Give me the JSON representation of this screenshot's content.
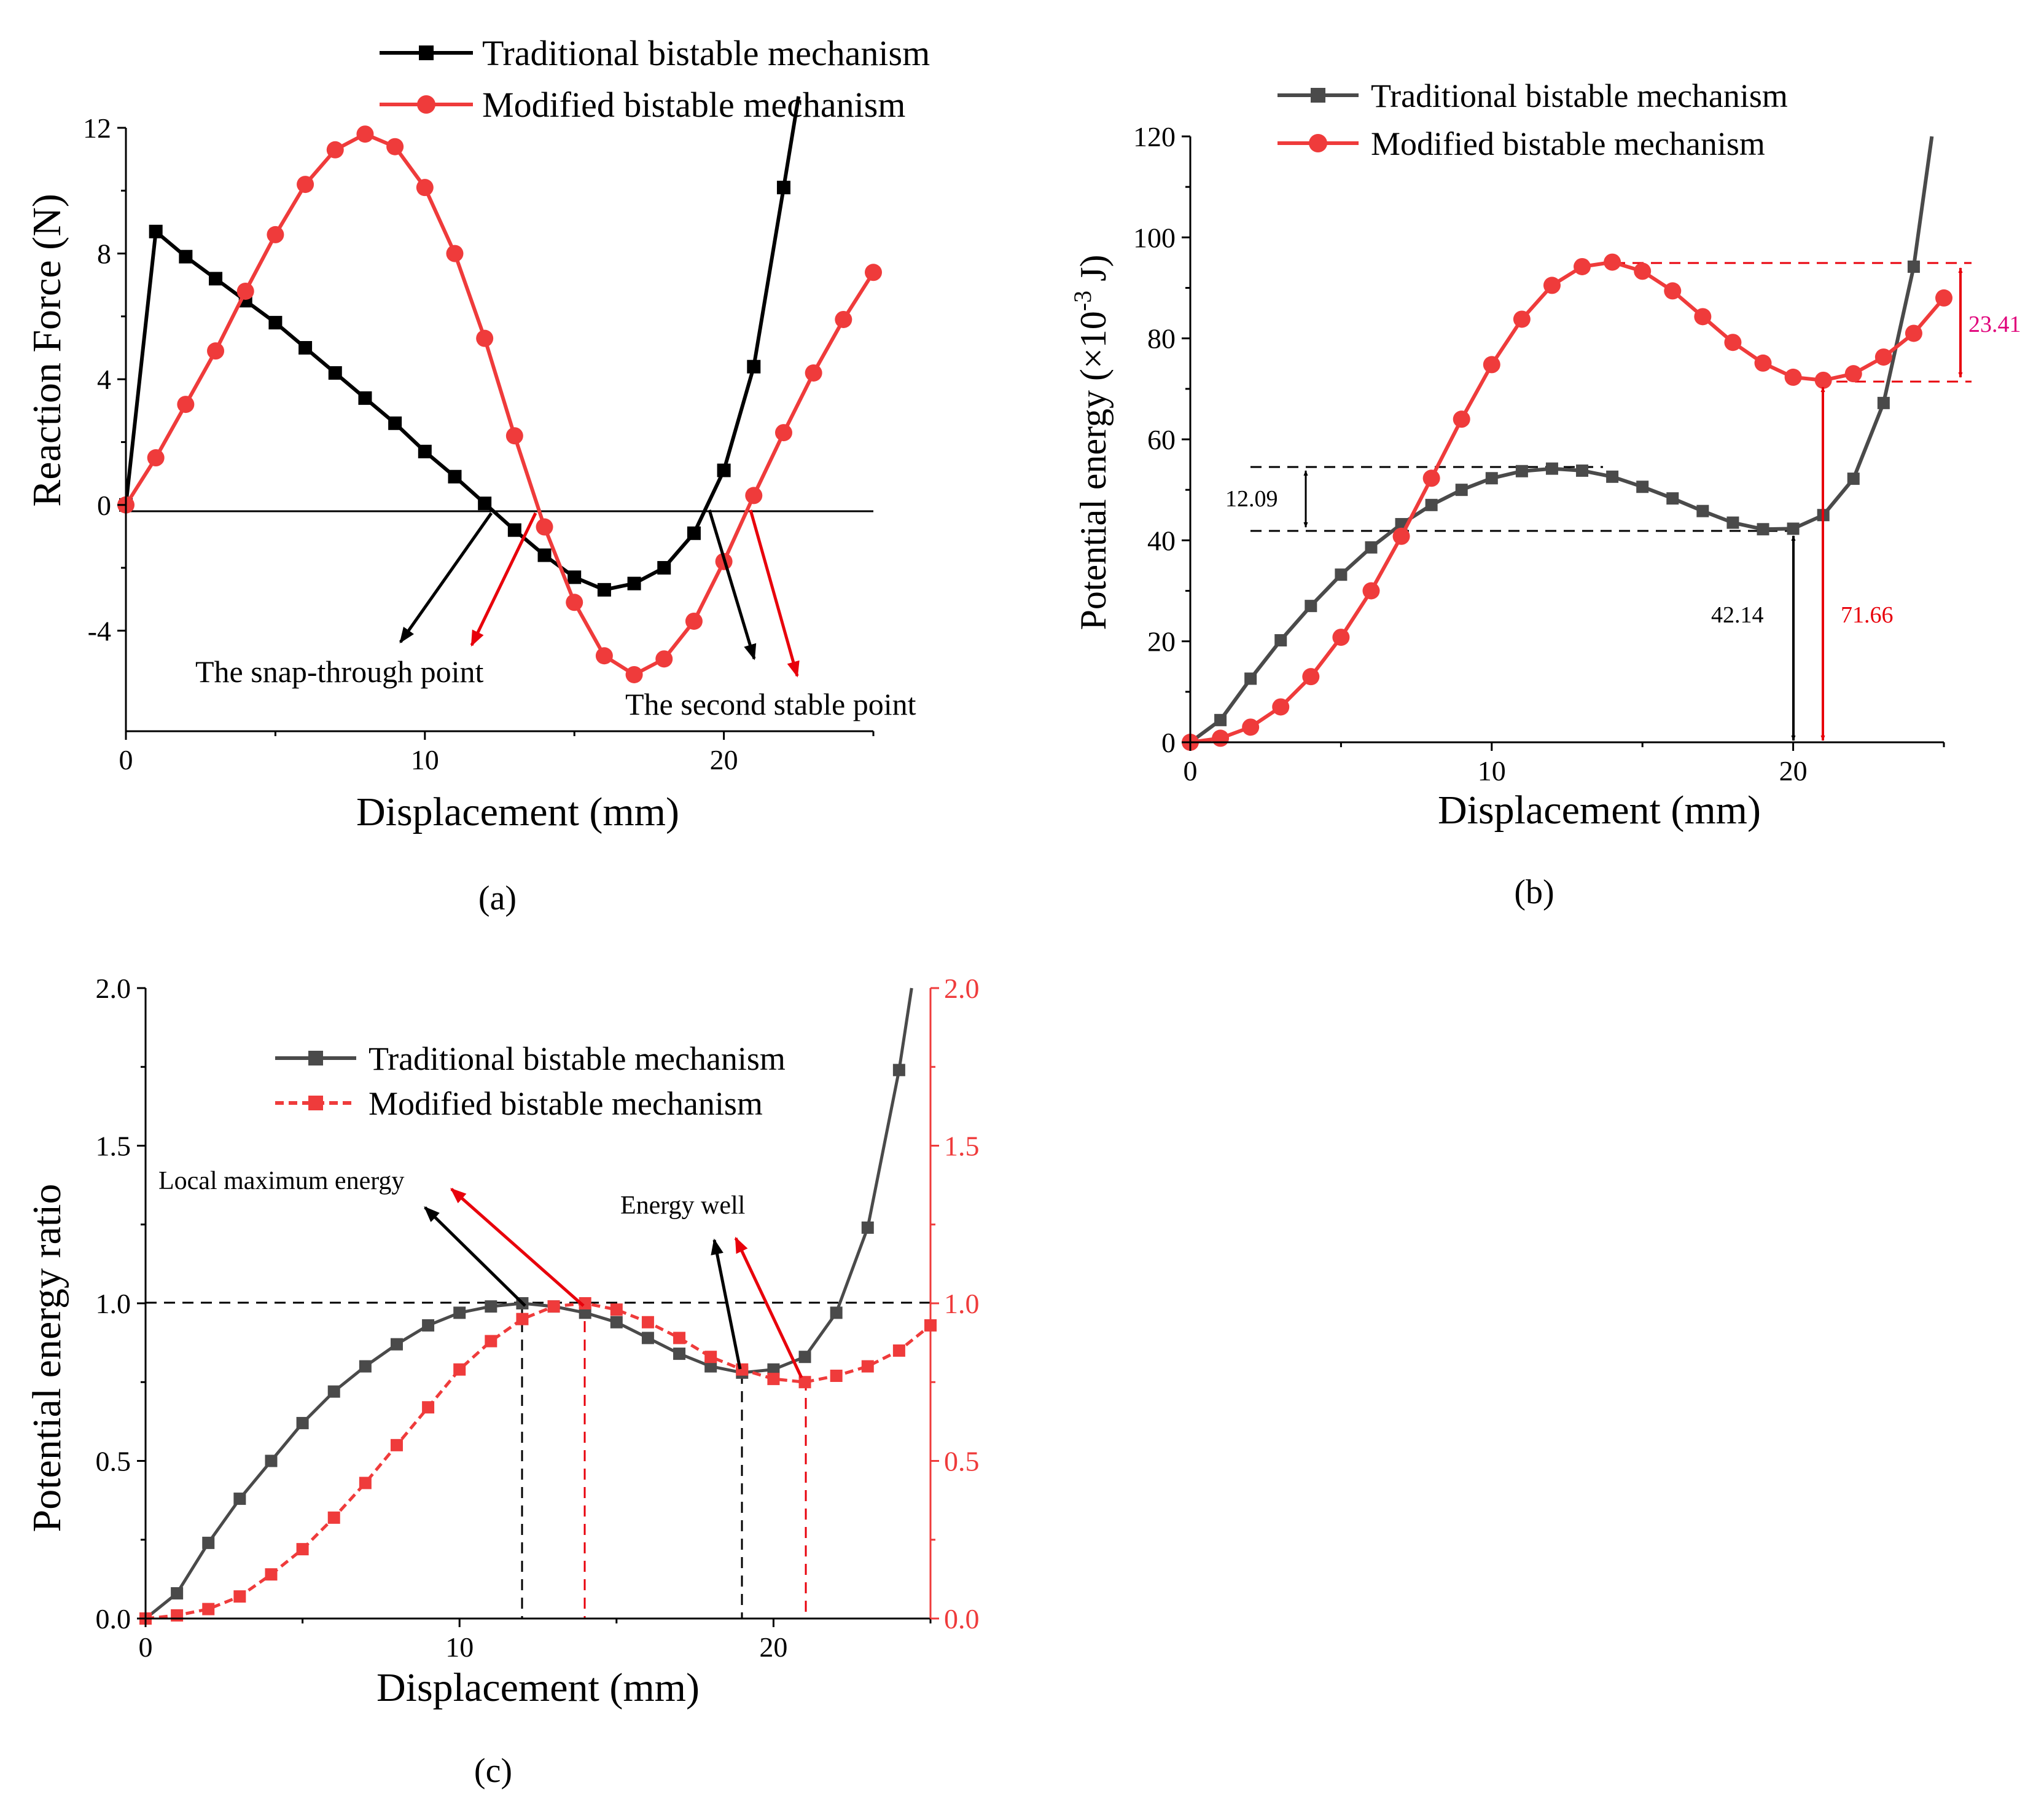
{
  "colors": {
    "black": "#000000",
    "gray": "#4a4a4a",
    "red": "#ef3b3b",
    "annotRed": "#e8000b",
    "magenta": "#e0007a"
  },
  "chart_data": [
    {
      "id": "a",
      "type": "line",
      "panel_label": "(a)",
      "xlabel": "Displacement (mm)",
      "ylabel": "Reaction Force (N)",
      "xlim": [
        0,
        25
      ],
      "ylim": [
        -7.2,
        12
      ],
      "x_ticks": [
        0,
        10,
        20
      ],
      "x_tick_labels": [
        "0",
        "10",
        "20"
      ],
      "y_ticks": [
        -4,
        0,
        4,
        8,
        12
      ],
      "y_tick_labels": [
        "-4",
        "0",
        "4",
        "8",
        "12"
      ],
      "legend": [
        "Traditional bistable mechanism",
        "Modified bistable mechanism"
      ],
      "legend_position": "top-right",
      "series": [
        {
          "name": "Traditional bistable mechanism",
          "marker": "square",
          "x": [
            0,
            1,
            2,
            3,
            4,
            5,
            6,
            7,
            8,
            9,
            10,
            11,
            12,
            13,
            14,
            15,
            16,
            17,
            18,
            19,
            20,
            21,
            22,
            22.5
          ],
          "y": [
            0,
            8.7,
            7.9,
            7.2,
            6.5,
            5.8,
            5.0,
            4.2,
            3.4,
            2.6,
            1.7,
            0.9,
            0.05,
            -0.8,
            -1.6,
            -2.3,
            -2.7,
            -2.5,
            -2.0,
            -0.9,
            1.1,
            4.4,
            10.1,
            13.0
          ],
          "markers": [
            1,
            1,
            1,
            1,
            1,
            1,
            1,
            1,
            1,
            1,
            1,
            1,
            1,
            1,
            1,
            1,
            1,
            1,
            1,
            1,
            1,
            1,
            1,
            0
          ]
        },
        {
          "name": "Modified bistable mechanism",
          "marker": "circle",
          "x": [
            0,
            1,
            2,
            3,
            4,
            5,
            6,
            7,
            8,
            9,
            10,
            11,
            12,
            13,
            14,
            15,
            16,
            17,
            18,
            19,
            20,
            21,
            22,
            23,
            24,
            25
          ],
          "y": [
            0,
            1.5,
            3.2,
            4.9,
            6.8,
            8.6,
            10.2,
            11.3,
            11.8,
            11.4,
            10.1,
            8.0,
            5.3,
            2.2,
            -0.7,
            -3.1,
            -4.8,
            -5.4,
            -4.9,
            -3.7,
            -1.8,
            0.3,
            2.3,
            4.2,
            5.9,
            7.4
          ]
        }
      ],
      "annotations": [
        "The snap-through point",
        "The second stable point"
      ]
    },
    {
      "id": "b",
      "type": "line",
      "panel_label": "(b)",
      "xlabel": "Displacement (mm)",
      "ylabel_main": "Potential energy (×10",
      "ylabel_sup": "-3",
      "ylabel_tail": " J)",
      "xlim": [
        0,
        25
      ],
      "ylim": [
        0,
        120
      ],
      "x_ticks": [
        0,
        10,
        20
      ],
      "x_tick_labels": [
        "0",
        "10",
        "20"
      ],
      "y_ticks": [
        0,
        20,
        40,
        60,
        80,
        100,
        120
      ],
      "y_tick_labels": [
        "0",
        "20",
        "40",
        "60",
        "80",
        "100",
        "120"
      ],
      "legend": [
        "Traditional bistable mechanism",
        "Modified bistable mechanism"
      ],
      "legend_position": "top-center",
      "series": [
        {
          "name": "Traditional bistable mechanism",
          "marker": "square",
          "x": [
            0,
            1,
            2,
            3,
            4,
            5,
            6,
            7,
            8,
            9,
            10,
            11,
            12,
            13,
            14,
            15,
            16,
            17,
            18,
            19,
            20,
            21,
            22,
            23,
            24,
            24.6
          ],
          "y": [
            0,
            4.4,
            12.6,
            20.2,
            27.0,
            33.2,
            38.6,
            43.2,
            47.0,
            50.0,
            52.3,
            53.7,
            54.2,
            53.8,
            52.6,
            50.6,
            48.3,
            45.8,
            43.5,
            42.2,
            42.3,
            45.0,
            52.2,
            67.2,
            94.2,
            120.0
          ],
          "markers": [
            0,
            1,
            1,
            1,
            1,
            1,
            1,
            1,
            1,
            1,
            1,
            1,
            1,
            1,
            1,
            1,
            1,
            1,
            1,
            1,
            1,
            1,
            1,
            1,
            1,
            0
          ]
        },
        {
          "name": "Modified bistable mechanism",
          "marker": "circle",
          "x": [
            0,
            1,
            2,
            3,
            4,
            5,
            6,
            7,
            8,
            9,
            10,
            11,
            12,
            13,
            14,
            15,
            16,
            17,
            18,
            19,
            20,
            21,
            22,
            23,
            24,
            25
          ],
          "y": [
            0,
            0.8,
            3.0,
            7.0,
            13.0,
            20.8,
            30.0,
            40.8,
            52.3,
            64.0,
            74.8,
            83.8,
            90.5,
            94.2,
            95.1,
            93.3,
            89.4,
            84.3,
            79.2,
            75.1,
            72.3,
            71.7,
            73.0,
            76.3,
            81.0,
            88.0
          ]
        }
      ],
      "annotations": [
        "12.09",
        "42.14",
        "71.66",
        "23.41"
      ]
    },
    {
      "id": "c",
      "type": "line",
      "panel_label": "(c)",
      "xlabel": "Displacement (mm)",
      "ylabel": "Potential energy ratio",
      "xlim": [
        0,
        25
      ],
      "ylim": [
        0,
        2.0
      ],
      "x_ticks": [
        0,
        10,
        20
      ],
      "x_tick_labels": [
        "0",
        "10",
        "20"
      ],
      "y_ticks": [
        0,
        0.5,
        1.0,
        1.5,
        2.0
      ],
      "y_tick_labels": [
        "0.0",
        "0.5",
        "1.0",
        "1.5",
        "2.0"
      ],
      "y2_tick_labels": [
        "0.0",
        "0.5",
        "1.0",
        "1.5",
        "2.0"
      ],
      "legend": [
        "Traditional bistable mechanism",
        "Modified bistable mechanism"
      ],
      "legend_position": "top-center",
      "series": [
        {
          "name": "Traditional bistable mechanism",
          "marker": "square",
          "x": [
            0,
            1,
            2,
            3,
            4,
            5,
            6,
            7,
            8,
            9,
            10,
            11,
            12,
            13,
            14,
            15,
            16,
            17,
            18,
            19,
            20,
            21,
            22,
            23,
            24,
            24.4
          ],
          "y": [
            0,
            0.08,
            0.24,
            0.38,
            0.5,
            0.62,
            0.72,
            0.8,
            0.87,
            0.93,
            0.97,
            0.99,
            1.0,
            0.99,
            0.97,
            0.94,
            0.89,
            0.84,
            0.8,
            0.78,
            0.79,
            0.83,
            0.97,
            1.24,
            1.74,
            2.0
          ],
          "markers": [
            0,
            1,
            1,
            1,
            1,
            1,
            1,
            1,
            1,
            1,
            1,
            1,
            1,
            1,
            1,
            1,
            1,
            1,
            1,
            1,
            1,
            1,
            1,
            1,
            1,
            0
          ]
        },
        {
          "name": "Modified bistable mechanism",
          "marker": "square",
          "dashed": true,
          "x": [
            0,
            1,
            2,
            3,
            4,
            5,
            6,
            7,
            8,
            9,
            10,
            11,
            12,
            13,
            14,
            15,
            16,
            17,
            18,
            19,
            20,
            21,
            22,
            23,
            24,
            25
          ],
          "y": [
            0,
            0.01,
            0.03,
            0.07,
            0.14,
            0.22,
            0.32,
            0.43,
            0.55,
            0.67,
            0.79,
            0.88,
            0.95,
            0.99,
            1.0,
            0.98,
            0.94,
            0.89,
            0.83,
            0.79,
            0.76,
            0.75,
            0.77,
            0.8,
            0.85,
            0.93
          ]
        }
      ],
      "annotations": [
        "Local maximum energy",
        "Energy well"
      ]
    }
  ]
}
